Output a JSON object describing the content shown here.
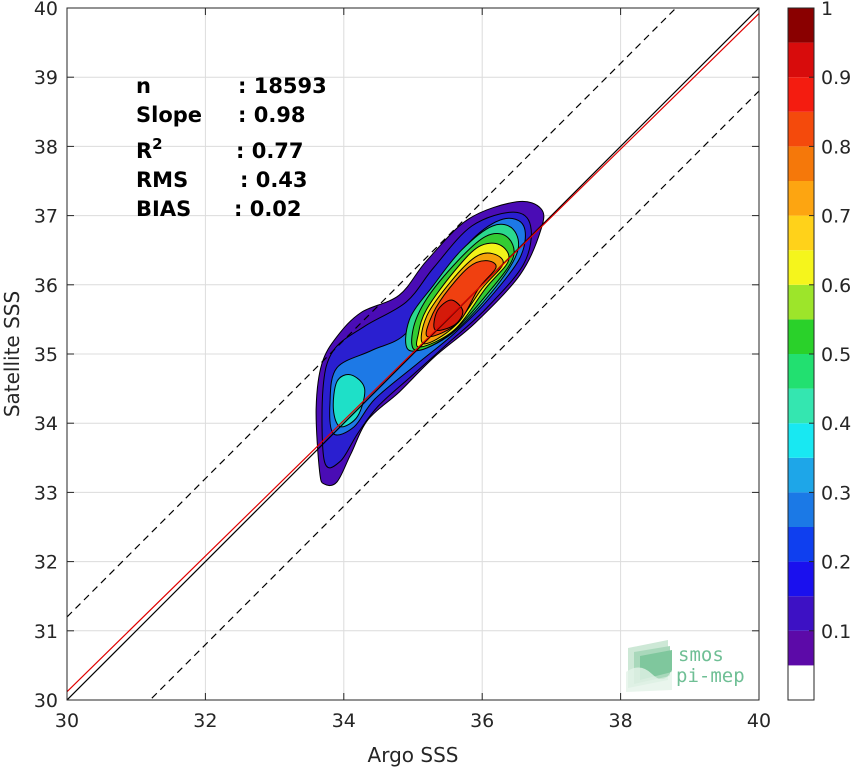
{
  "chart_data": {
    "type": "heatmap",
    "subtype": "density-contour",
    "xlabel": "Argo SSS",
    "ylabel": "Satellite SSS",
    "xlim": [
      30,
      40
    ],
    "ylim": [
      30,
      40
    ],
    "xticks": [
      "30",
      "32",
      "34",
      "36",
      "38",
      "40"
    ],
    "yticks": [
      "30",
      "31",
      "32",
      "33",
      "34",
      "35",
      "36",
      "37",
      "38",
      "39",
      "40"
    ],
    "grid": true,
    "stats": [
      {
        "label": "n",
        "sep": ":",
        "value": "18593"
      },
      {
        "label": "Slope",
        "sep": ":",
        "value": "0.98"
      },
      {
        "label": "R",
        "sup": "2",
        "sep": ":",
        "value": "0.77"
      },
      {
        "label": "RMS",
        "sep": ":",
        "value": "0.43"
      },
      {
        "label": "BIAS",
        "sep": ":",
        "value": "0.02"
      }
    ],
    "lines": [
      {
        "style": "solid",
        "color": "#000000",
        "slope": 1,
        "intercept": 0
      },
      {
        "style": "solid",
        "color": "#e00000",
        "slope": 0.98,
        "intercept": 0.72
      },
      {
        "style": "dashed",
        "color": "#000000",
        "slope": 1,
        "intercept": 1.2
      },
      {
        "style": "dashed",
        "color": "#000000",
        "slope": 1,
        "intercept": -1.2
      }
    ],
    "contours": [
      {
        "level": 0.05,
        "color": "#4a0cb5",
        "points": [
          [
            33.65,
            33.3
          ],
          [
            33.72,
            33.12
          ],
          [
            33.9,
            33.15
          ],
          [
            34.1,
            33.55
          ],
          [
            34.35,
            34.05
          ],
          [
            34.8,
            34.45
          ],
          [
            35.3,
            34.95
          ],
          [
            35.9,
            35.45
          ],
          [
            36.55,
            36.15
          ],
          [
            36.85,
            36.8
          ],
          [
            36.85,
            37.1
          ],
          [
            36.5,
            37.2
          ],
          [
            35.8,
            36.95
          ],
          [
            35.2,
            36.35
          ],
          [
            34.8,
            35.85
          ],
          [
            34.25,
            35.6
          ],
          [
            33.9,
            35.25
          ],
          [
            33.68,
            34.85
          ],
          [
            33.6,
            34.2
          ]
        ]
      },
      {
        "level": 0.1,
        "color": "#2a1fd0",
        "points": [
          [
            33.72,
            33.45
          ],
          [
            33.95,
            33.45
          ],
          [
            34.2,
            33.85
          ],
          [
            34.5,
            34.25
          ],
          [
            35.0,
            34.7
          ],
          [
            35.5,
            35.15
          ],
          [
            36.05,
            35.65
          ],
          [
            36.6,
            36.3
          ],
          [
            36.7,
            36.85
          ],
          [
            36.45,
            37.05
          ],
          [
            35.85,
            36.85
          ],
          [
            35.3,
            36.25
          ],
          [
            34.9,
            35.75
          ],
          [
            34.3,
            35.4
          ],
          [
            33.85,
            35.05
          ],
          [
            33.7,
            34.5
          ]
        ]
      },
      {
        "level": 0.25,
        "color": "#1d79e6",
        "points": [
          [
            33.85,
            33.85
          ],
          [
            34.15,
            33.95
          ],
          [
            34.45,
            34.35
          ],
          [
            35.05,
            34.85
          ],
          [
            35.6,
            35.3
          ],
          [
            36.1,
            35.8
          ],
          [
            36.55,
            36.4
          ],
          [
            36.6,
            36.85
          ],
          [
            36.3,
            36.95
          ],
          [
            35.85,
            36.65
          ],
          [
            35.35,
            36.0
          ],
          [
            34.9,
            35.3
          ],
          [
            34.4,
            35.05
          ],
          [
            33.9,
            34.8
          ],
          [
            33.8,
            34.3
          ]
        ]
      },
      {
        "level": 0.4,
        "color": "#1ee0c8",
        "points": [
          [
            33.95,
            33.95
          ],
          [
            34.2,
            34.1
          ],
          [
            34.3,
            34.5
          ],
          [
            34.1,
            34.7
          ],
          [
            33.9,
            34.6
          ],
          [
            33.85,
            34.2
          ]
        ]
      },
      {
        "level": 0.45,
        "color": "#2bd98f",
        "points": [
          [
            34.95,
            35.05
          ],
          [
            35.5,
            35.25
          ],
          [
            36.1,
            35.85
          ],
          [
            36.5,
            36.45
          ],
          [
            36.45,
            36.8
          ],
          [
            36.15,
            36.85
          ],
          [
            35.7,
            36.5
          ],
          [
            35.3,
            36.0
          ],
          [
            34.95,
            35.5
          ]
        ]
      },
      {
        "level": 0.55,
        "color": "#33cc33",
        "points": [
          [
            35.05,
            35.05
          ],
          [
            35.55,
            35.3
          ],
          [
            36.1,
            35.9
          ],
          [
            36.45,
            36.4
          ],
          [
            36.35,
            36.7
          ],
          [
            36.05,
            36.7
          ],
          [
            35.65,
            36.35
          ],
          [
            35.2,
            35.8
          ],
          [
            35.0,
            35.35
          ]
        ]
      },
      {
        "level": 0.65,
        "color": "#f2f21a",
        "points": [
          [
            35.1,
            35.1
          ],
          [
            35.6,
            35.35
          ],
          [
            36.05,
            35.95
          ],
          [
            36.38,
            36.35
          ],
          [
            36.25,
            36.58
          ],
          [
            35.95,
            36.55
          ],
          [
            35.6,
            36.2
          ],
          [
            35.2,
            35.65
          ],
          [
            35.08,
            35.3
          ]
        ]
      },
      {
        "level": 0.75,
        "color": "#f5a20a",
        "points": [
          [
            35.15,
            35.15
          ],
          [
            35.6,
            35.4
          ],
          [
            36.0,
            35.95
          ],
          [
            36.3,
            36.3
          ],
          [
            36.15,
            36.45
          ],
          [
            35.9,
            36.4
          ],
          [
            35.55,
            36.05
          ],
          [
            35.2,
            35.55
          ]
        ]
      },
      {
        "level": 0.85,
        "color": "#f04010",
        "points": [
          [
            35.22,
            35.25
          ],
          [
            35.65,
            35.45
          ],
          [
            35.95,
            35.95
          ],
          [
            36.2,
            36.25
          ],
          [
            36.05,
            36.35
          ],
          [
            35.8,
            36.25
          ],
          [
            35.45,
            35.85
          ],
          [
            35.25,
            35.5
          ]
        ]
      },
      {
        "level": 0.95,
        "color": "#d51a0a",
        "points": [
          [
            35.32,
            35.35
          ],
          [
            35.6,
            35.42
          ],
          [
            35.72,
            35.62
          ],
          [
            35.55,
            35.78
          ],
          [
            35.35,
            35.62
          ]
        ]
      }
    ],
    "colorbar": {
      "range": [
        0,
        1
      ],
      "ticks": [
        "0.1",
        "0.2",
        "0.3",
        "0.4",
        "0.5",
        "0.6",
        "0.7",
        "0.8",
        "0.9",
        "1"
      ],
      "levels": [
        {
          "from": 0.0,
          "to": 0.05,
          "color": "#ffffff"
        },
        {
          "from": 0.05,
          "to": 0.1,
          "color": "#5c0aa8"
        },
        {
          "from": 0.1,
          "to": 0.15,
          "color": "#3d11c4"
        },
        {
          "from": 0.15,
          "to": 0.2,
          "color": "#1a10ee"
        },
        {
          "from": 0.2,
          "to": 0.25,
          "color": "#0f3fef"
        },
        {
          "from": 0.25,
          "to": 0.3,
          "color": "#1b79e6"
        },
        {
          "from": 0.3,
          "to": 0.35,
          "color": "#1ea6e8"
        },
        {
          "from": 0.35,
          "to": 0.4,
          "color": "#18e8f2"
        },
        {
          "from": 0.4,
          "to": 0.45,
          "color": "#34e6b0"
        },
        {
          "from": 0.45,
          "to": 0.5,
          "color": "#22e070"
        },
        {
          "from": 0.5,
          "to": 0.55,
          "color": "#2ad12a"
        },
        {
          "from": 0.55,
          "to": 0.6,
          "color": "#9de52a"
        },
        {
          "from": 0.6,
          "to": 0.65,
          "color": "#f5f51c"
        },
        {
          "from": 0.65,
          "to": 0.7,
          "color": "#ffd21a"
        },
        {
          "from": 0.7,
          "to": 0.75,
          "color": "#fda511"
        },
        {
          "from": 0.75,
          "to": 0.8,
          "color": "#f5780a"
        },
        {
          "from": 0.8,
          "to": 0.85,
          "color": "#f44a0c"
        },
        {
          "from": 0.85,
          "to": 0.9,
          "color": "#f41c10"
        },
        {
          "from": 0.9,
          "to": 0.95,
          "color": "#d80c0c"
        },
        {
          "from": 0.95,
          "to": 1.0,
          "color": "#8a0000"
        }
      ]
    }
  },
  "logo": {
    "line1": "smos",
    "line2": "pi-mep",
    "color": "#6fbf95"
  }
}
